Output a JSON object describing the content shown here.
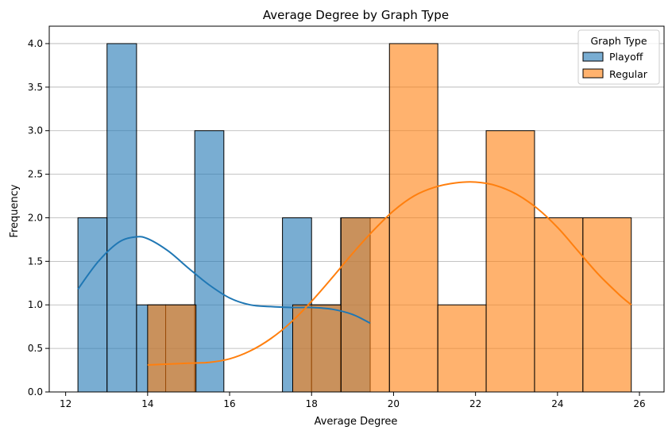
{
  "chart_data": {
    "type": "histogram",
    "title": "Average Degree by Graph Type",
    "xlabel": "Average Degree",
    "ylabel": "Frequency",
    "xlim": [
      11.6,
      26.6
    ],
    "ylim": [
      0,
      4.2
    ],
    "xticks": [
      12,
      14,
      16,
      18,
      20,
      22,
      24,
      26
    ],
    "xtick_labels": [
      "12",
      "14",
      "16",
      "18",
      "20",
      "22",
      "24",
      "26"
    ],
    "yticks": [
      0,
      0.5,
      1.0,
      1.5,
      2.0,
      2.5,
      3.0,
      3.5,
      4.0
    ],
    "ytick_labels": [
      "0.0",
      "0.5",
      "1.0",
      "1.5",
      "2.0",
      "2.5",
      "3.0",
      "3.5",
      "4.0"
    ],
    "grid": "y",
    "legend": {
      "title": "Graph Type",
      "placement": "top-right"
    },
    "series": [
      {
        "name": "Playoff",
        "color": "#1f77b4",
        "bins": [
          {
            "x0": 12.3,
            "x1": 13.01,
            "count": 2
          },
          {
            "x0": 13.01,
            "x1": 13.73,
            "count": 4
          },
          {
            "x0": 13.73,
            "x1": 14.44,
            "count": 1
          },
          {
            "x0": 14.44,
            "x1": 15.15,
            "count": 1
          },
          {
            "x0": 15.15,
            "x1": 15.86,
            "count": 3
          },
          {
            "x0": 15.86,
            "x1": 16.58,
            "count": 0
          },
          {
            "x0": 16.58,
            "x1": 17.29,
            "count": 0
          },
          {
            "x0": 17.29,
            "x1": 18.0,
            "count": 2
          },
          {
            "x0": 18.0,
            "x1": 18.71,
            "count": 1
          },
          {
            "x0": 18.71,
            "x1": 19.43,
            "count": 2
          }
        ],
        "kde": {
          "x": [
            12.3,
            12.8,
            13.3,
            13.7,
            14.0,
            14.5,
            15.0,
            15.5,
            16.0,
            16.5,
            17.0,
            17.5,
            18.0,
            18.5,
            19.0,
            19.43
          ],
          "y": [
            1.18,
            1.5,
            1.72,
            1.78,
            1.76,
            1.62,
            1.42,
            1.23,
            1.08,
            1.0,
            0.98,
            0.97,
            0.97,
            0.95,
            0.89,
            0.79
          ]
        }
      },
      {
        "name": "Regular",
        "color": "#ff7f0e",
        "bins": [
          {
            "x0": 14.0,
            "x1": 15.18,
            "count": 1
          },
          {
            "x0": 15.18,
            "x1": 16.36,
            "count": 0
          },
          {
            "x0": 16.36,
            "x1": 17.54,
            "count": 0
          },
          {
            "x0": 17.54,
            "x1": 18.72,
            "count": 1
          },
          {
            "x0": 18.72,
            "x1": 19.9,
            "count": 2
          },
          {
            "x0": 19.9,
            "x1": 21.08,
            "count": 4
          },
          {
            "x0": 21.08,
            "x1": 22.26,
            "count": 1
          },
          {
            "x0": 22.26,
            "x1": 23.44,
            "count": 3
          },
          {
            "x0": 23.44,
            "x1": 24.62,
            "count": 2
          },
          {
            "x0": 24.62,
            "x1": 25.8,
            "count": 2
          }
        ],
        "kde": {
          "x": [
            14.0,
            14.5,
            15.0,
            15.5,
            16.0,
            16.5,
            17.0,
            17.5,
            18.0,
            18.5,
            19.0,
            19.5,
            20.0,
            20.5,
            21.0,
            21.5,
            22.0,
            22.5,
            23.0,
            23.5,
            24.0,
            24.5,
            25.0,
            25.5,
            25.8
          ],
          "y": [
            0.31,
            0.32,
            0.33,
            0.34,
            0.38,
            0.47,
            0.61,
            0.8,
            1.04,
            1.31,
            1.59,
            1.85,
            2.08,
            2.25,
            2.35,
            2.4,
            2.41,
            2.37,
            2.27,
            2.11,
            1.89,
            1.62,
            1.35,
            1.12,
            1.0
          ]
        }
      }
    ]
  }
}
